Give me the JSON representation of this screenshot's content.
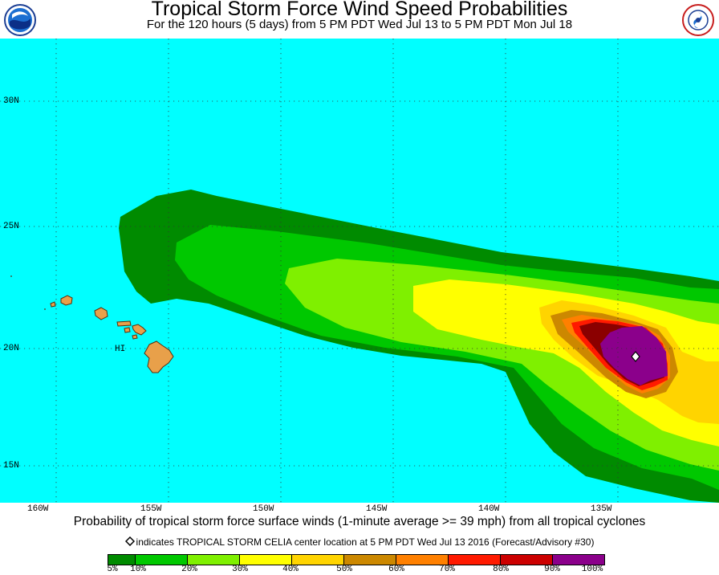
{
  "title": "Tropical Storm Force Wind Speed Probabilities",
  "subtitle": "For the 120 hours (5 days) from 5 PM PDT Wed Jul 13 to 5 PM PDT Mon Jul 18",
  "logos": {
    "left": "noaa-logo",
    "right": "national-weather-service-logo"
  },
  "map": {
    "latitude_labels": [
      "30N",
      "25N",
      "20N",
      "15N"
    ],
    "longitude_labels": [
      "160W",
      "155W",
      "150W",
      "145W",
      "140W",
      "135W"
    ],
    "place_label": "HI",
    "colors": {
      "ocean": "#00ffff",
      "land": "#e8a04a",
      "grid": "#333333"
    }
  },
  "storm_center_marker": "diamond-icon",
  "footer": {
    "main": "Probability of tropical storm force surface winds (1-minute average >= 39 mph) from all tropical cyclones",
    "note": "indicates TROPICAL STORM CELIA center location at 5 PM PDT Wed Jul 13 2016 (Forecast/Advisory #30)"
  },
  "legend": {
    "labels": [
      "5%",
      "10%",
      "20%",
      "30%",
      "40%",
      "50%",
      "60%",
      "70%",
      "80%",
      "90%",
      "100%"
    ],
    "colors": [
      "#008b00",
      "#00c800",
      "#7ff000",
      "#ffff00",
      "#ffd400",
      "#cc8800",
      "#ff8000",
      "#ff1a00",
      "#cc0000",
      "#8b0000",
      "#8b008b"
    ]
  }
}
